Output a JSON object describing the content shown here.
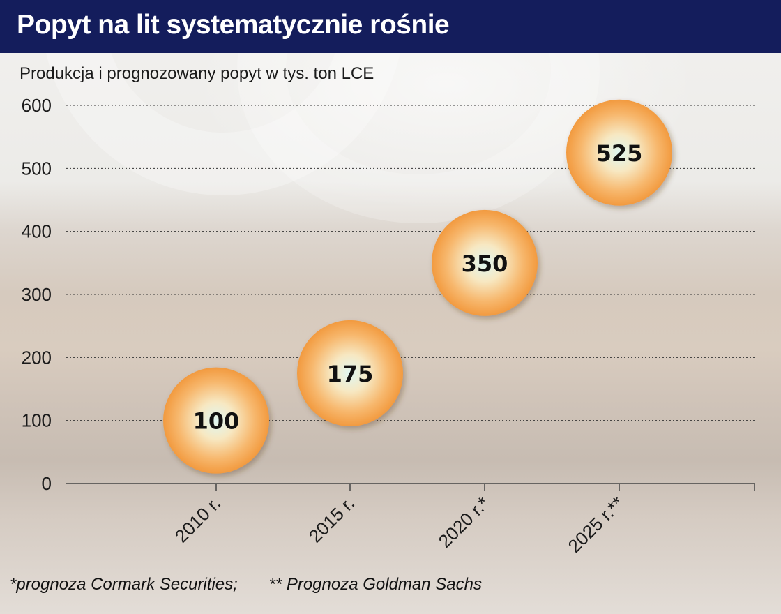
{
  "title": "Popyt na lit systematycznie rośnie",
  "subtitle": "Produkcja i prognozowany popyt w tys. ton LCE",
  "footnotes": [
    "*prognoza Cormark Securities;",
    "** Prognoza Goldman Sachs"
  ],
  "colors": {
    "header": "#141d5c",
    "bubble_edge": "#f5a14a",
    "bubble_center": "#dff7f2"
  },
  "chart_data": {
    "type": "scatter",
    "categories": [
      "2010 r.",
      "2015 r.",
      "2020 r.*",
      "2025 r.**"
    ],
    "values": [
      100,
      175,
      350,
      525
    ],
    "data_labels": [
      "100",
      "175",
      "350",
      "525"
    ],
    "ylim": [
      0,
      600
    ],
    "yticks": [
      0,
      100,
      200,
      300,
      400,
      500,
      600
    ],
    "grid": true
  }
}
